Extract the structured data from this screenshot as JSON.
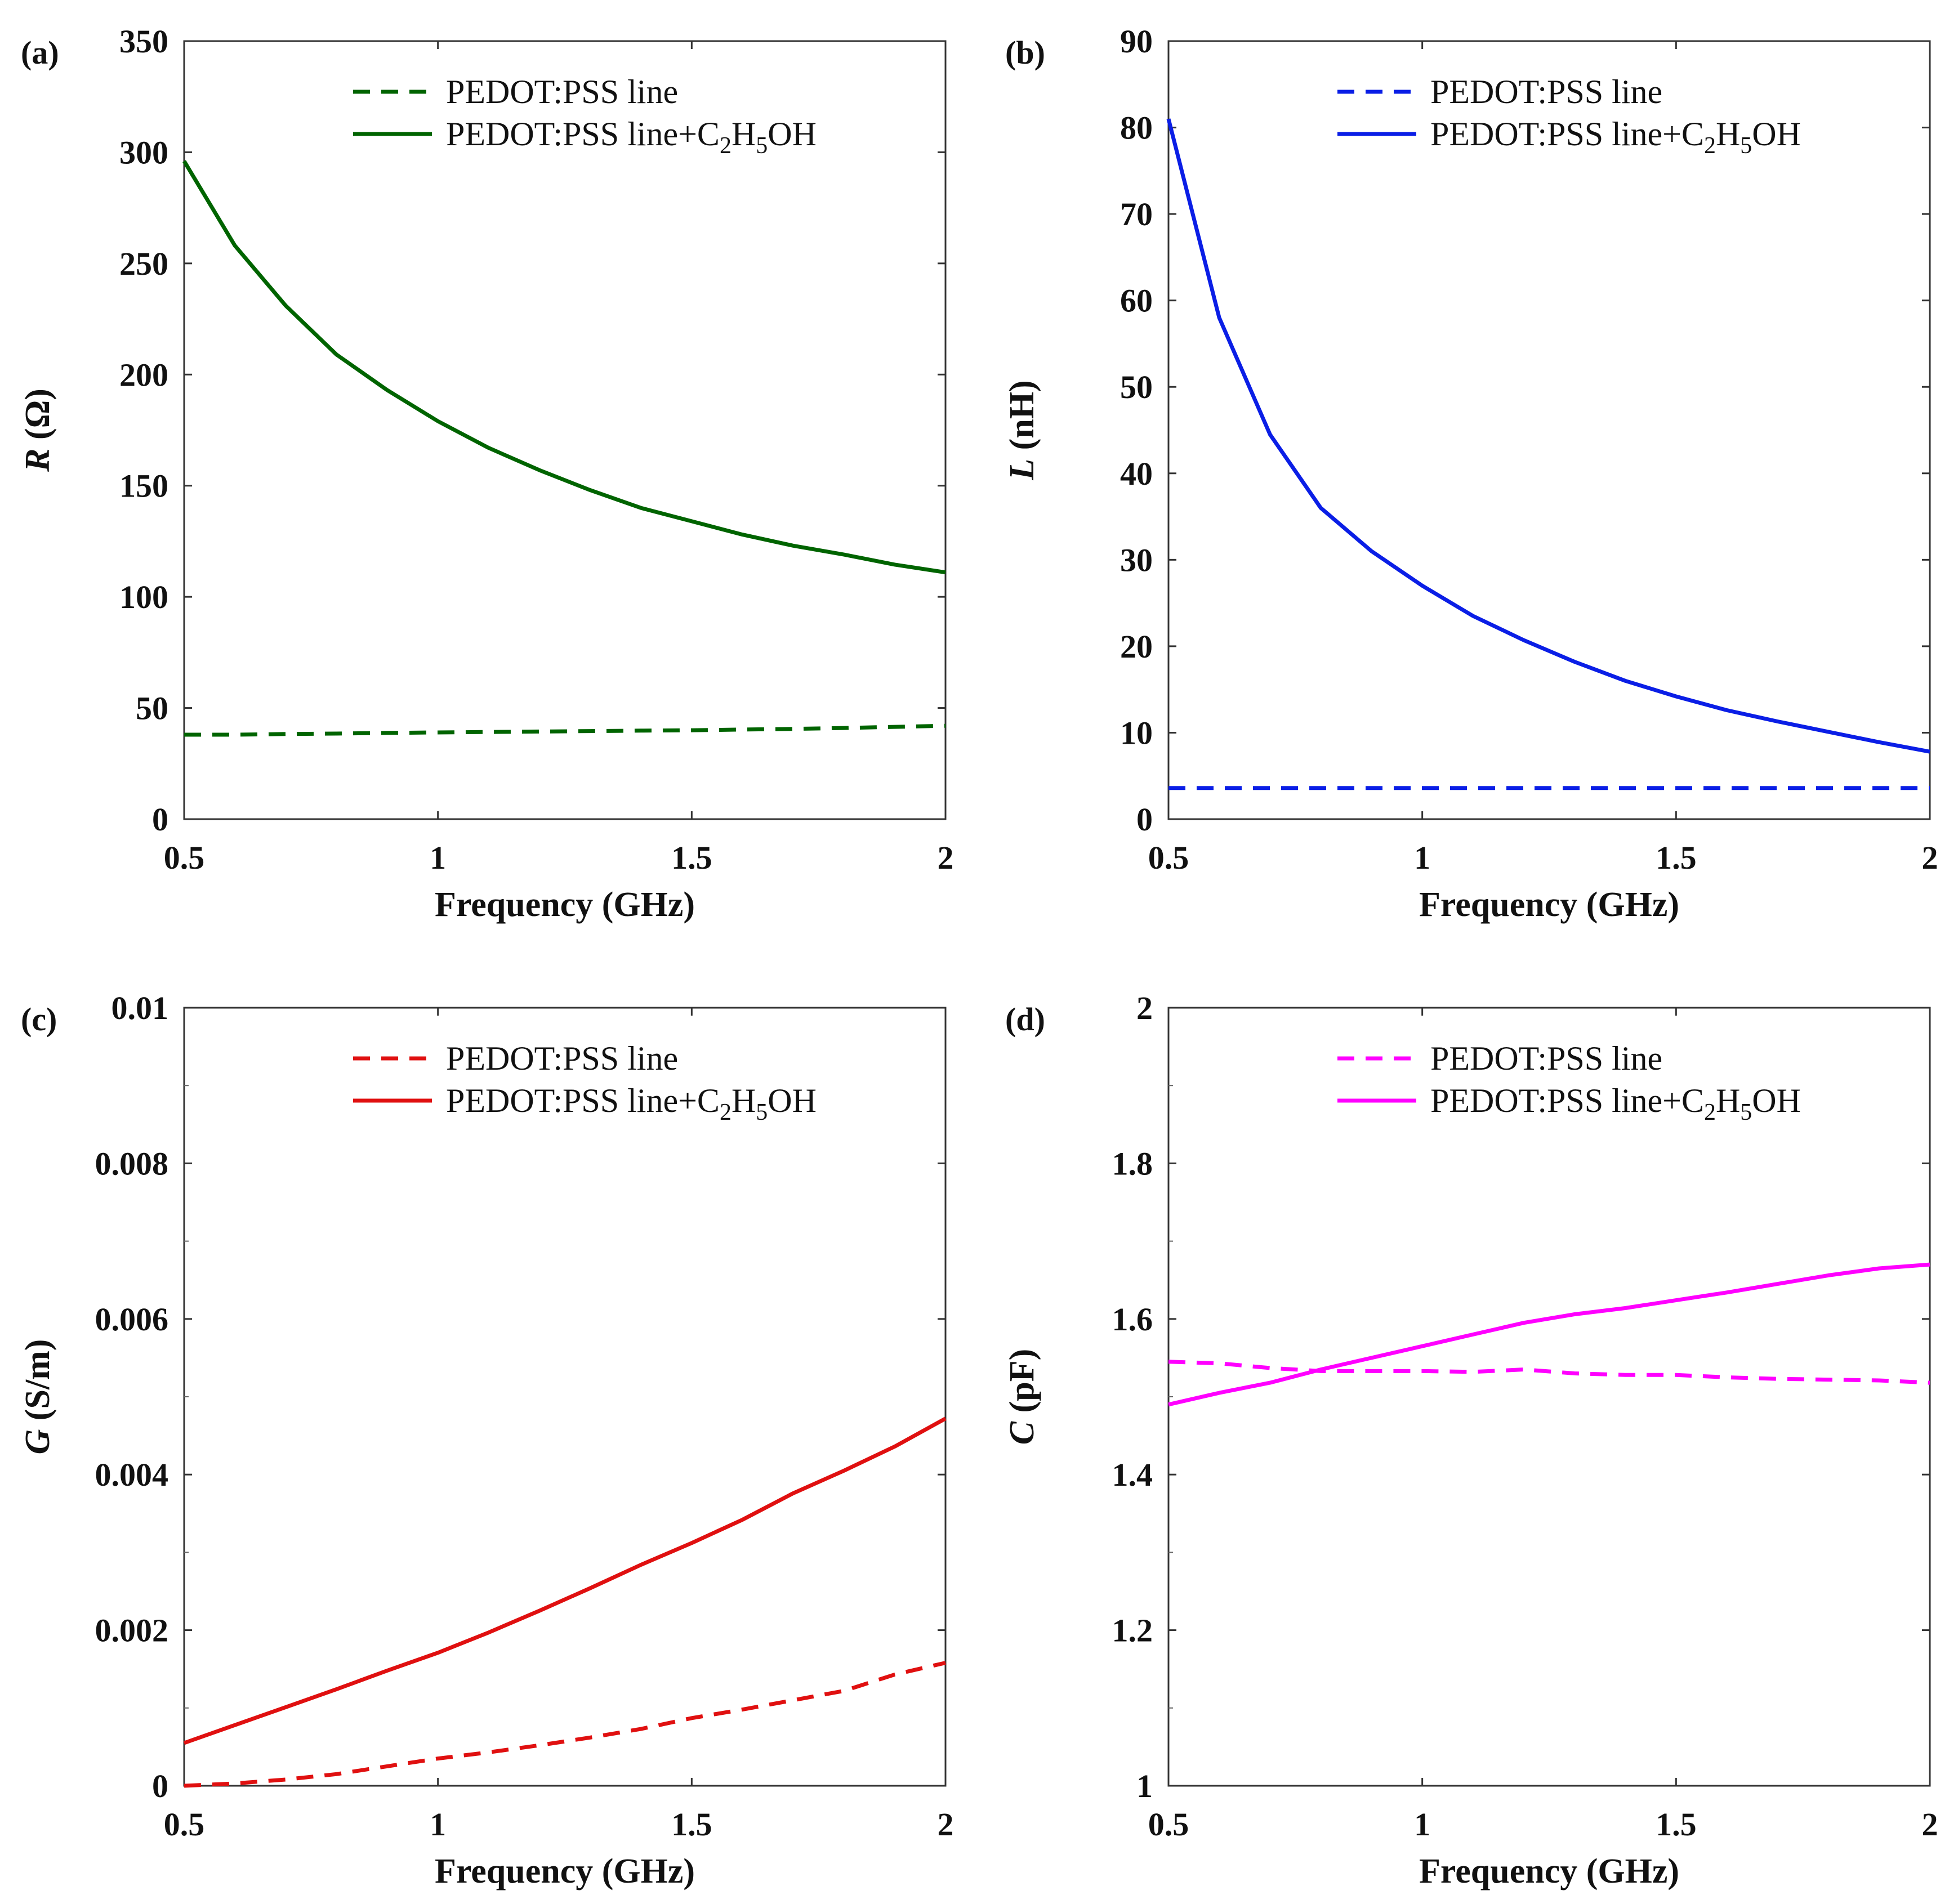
{
  "chart_data": [
    {
      "type": "line",
      "panel": "(a)",
      "xlabel": "Frequency (GHz)",
      "ylabel_var": "R",
      "ylabel_unit": " (Ω)",
      "xlim": [
        0.5,
        2
      ],
      "ylim": [
        0,
        350
      ],
      "xticks": [
        0.5,
        1,
        1.5,
        2
      ],
      "xtick_labels": [
        "0.5",
        "1",
        "1.5",
        "2"
      ],
      "yticks": [
        0,
        50,
        100,
        150,
        200,
        250,
        300,
        350
      ],
      "ytick_labels": [
        "0",
        "50",
        "100",
        "150",
        "200",
        "250",
        "300",
        "350"
      ],
      "minor_yticks": [],
      "color": "#006400",
      "legend": [
        "PEDOT:PSS line",
        "PEDOT:PSS line+C"
      ],
      "legend_sub": [
        "2",
        "H",
        "5",
        "OH"
      ],
      "legend_position": "top-right",
      "x": [
        0.5,
        0.6,
        0.7,
        0.8,
        0.9,
        1.0,
        1.1,
        1.2,
        1.3,
        1.4,
        1.5,
        1.6,
        1.7,
        1.8,
        1.9,
        2.0
      ],
      "series": [
        {
          "name": "PEDOT:PSS line",
          "style": "dashed",
          "values": [
            38,
            38,
            38.3,
            38.5,
            38.8,
            39,
            39.2,
            39.4,
            39.6,
            39.8,
            40,
            40.3,
            40.6,
            41,
            41.5,
            42
          ]
        },
        {
          "name": "PEDOT:PSS line+C2H5OH",
          "style": "solid",
          "values": [
            296,
            258,
            231,
            209,
            193,
            179,
            167,
            157,
            148,
            140,
            134,
            128,
            123,
            119,
            114.5,
            111
          ]
        }
      ]
    },
    {
      "type": "line",
      "panel": "(b)",
      "xlabel": "Frequency (GHz)",
      "ylabel_var": "L",
      "ylabel_unit": " (nH)",
      "xlim": [
        0.5,
        2
      ],
      "ylim": [
        0,
        90
      ],
      "xticks": [
        0.5,
        1,
        1.5,
        2
      ],
      "xtick_labels": [
        "0.5",
        "1",
        "1.5",
        "2"
      ],
      "yticks": [
        0,
        10,
        20,
        30,
        40,
        50,
        60,
        70,
        80,
        90
      ],
      "ytick_labels": [
        "0",
        "10",
        "20",
        "30",
        "40",
        "50",
        "60",
        "70",
        "80",
        "90"
      ],
      "minor_yticks": [],
      "color": "#0a1ee6",
      "legend": [
        "PEDOT:PSS line",
        "PEDOT:PSS line+C"
      ],
      "legend_sub": [
        "2",
        "H",
        "5",
        "OH"
      ],
      "legend_position": "top-right",
      "x": [
        0.5,
        0.6,
        0.7,
        0.8,
        0.9,
        1.0,
        1.1,
        1.2,
        1.3,
        1.4,
        1.5,
        1.6,
        1.7,
        1.8,
        1.9,
        2.0
      ],
      "series": [
        {
          "name": "PEDOT:PSS line",
          "style": "dashed",
          "values": [
            3.6,
            3.6,
            3.6,
            3.6,
            3.6,
            3.6,
            3.6,
            3.6,
            3.6,
            3.6,
            3.6,
            3.6,
            3.6,
            3.6,
            3.6,
            3.6
          ]
        },
        {
          "name": "PEDOT:PSS line+C2H5OH",
          "style": "solid",
          "values": [
            81,
            58,
            44.5,
            36,
            31,
            27,
            23.5,
            20.7,
            18.2,
            16,
            14.2,
            12.6,
            11.3,
            10.1,
            8.9,
            7.8
          ]
        }
      ]
    },
    {
      "type": "line",
      "panel": "(c)",
      "xlabel": "Frequency (GHz)",
      "ylabel_var": "G",
      "ylabel_unit": " (S/m)",
      "xlim": [
        0.5,
        2
      ],
      "ylim": [
        0,
        0.01
      ],
      "xticks": [
        0.5,
        1,
        1.5,
        2
      ],
      "xtick_labels": [
        "0.5",
        "1",
        "1.5",
        "2"
      ],
      "yticks": [
        0,
        0.002,
        0.004,
        0.006,
        0.008,
        0.01
      ],
      "ytick_labels": [
        "0",
        "0.002",
        "0.004",
        "0.006",
        "0.008",
        "0.01"
      ],
      "minor_yticks": [
        0.001,
        0.003,
        0.005,
        0.007,
        0.009
      ],
      "color": "#e01010",
      "legend": [
        "PEDOT:PSS line",
        "PEDOT:PSS line+C"
      ],
      "legend_sub": [
        "2",
        "H",
        "5",
        "OH"
      ],
      "legend_position": "top-right",
      "x": [
        0.5,
        0.6,
        0.7,
        0.8,
        0.9,
        1.0,
        1.1,
        1.2,
        1.3,
        1.4,
        1.5,
        1.6,
        1.7,
        1.8,
        1.9,
        2.0
      ],
      "series": [
        {
          "name": "PEDOT:PSS line",
          "style": "dashed",
          "values": [
            0.0,
            3e-05,
            8e-05,
            0.00015,
            0.00025,
            0.00035,
            0.00043,
            0.00052,
            0.00062,
            0.00073,
            0.00087,
            0.00098,
            0.0011,
            0.00122,
            0.00143,
            0.00158
          ]
        },
        {
          "name": "PEDOT:PSS line+C2H5OH",
          "style": "solid",
          "values": [
            0.00055,
            0.00078,
            0.00101,
            0.00124,
            0.00148,
            0.00171,
            0.00197,
            0.00225,
            0.00254,
            0.00284,
            0.00312,
            0.00342,
            0.00376,
            0.00405,
            0.00436,
            0.00472
          ]
        }
      ]
    },
    {
      "type": "line",
      "panel": "(d)",
      "xlabel": "Frequency (GHz)",
      "ylabel_var": "C",
      "ylabel_unit": " (pF)",
      "xlim": [
        0.5,
        2
      ],
      "ylim": [
        1,
        2
      ],
      "xticks": [
        0.5,
        1,
        1.5,
        2
      ],
      "xtick_labels": [
        "0.5",
        "1",
        "1.5",
        "2"
      ],
      "yticks": [
        1,
        1.2,
        1.4,
        1.6,
        1.8,
        2
      ],
      "ytick_labels": [
        "1",
        "1.2",
        "1.4",
        "1.6",
        "1.8",
        "2"
      ],
      "minor_yticks": [
        1.1,
        1.3,
        1.5,
        1.7,
        1.9
      ],
      "color": "#ff00ff",
      "legend": [
        "PEDOT:PSS line",
        "PEDOT:PSS line+C"
      ],
      "legend_sub": [
        "2",
        "H",
        "5",
        "OH"
      ],
      "legend_position": "top-right",
      "x": [
        0.5,
        0.6,
        0.7,
        0.8,
        0.9,
        1.0,
        1.1,
        1.2,
        1.3,
        1.4,
        1.5,
        1.6,
        1.7,
        1.8,
        1.9,
        2.0
      ],
      "series": [
        {
          "name": "PEDOT:PSS line",
          "style": "dashed",
          "values": [
            1.545,
            1.543,
            1.537,
            1.533,
            1.533,
            1.533,
            1.532,
            1.535,
            1.53,
            1.528,
            1.528,
            1.525,
            1.523,
            1.522,
            1.521,
            1.518
          ]
        },
        {
          "name": "PEDOT:PSS line+C2H5OH",
          "style": "solid",
          "values": [
            1.49,
            1.505,
            1.518,
            1.535,
            1.55,
            1.565,
            1.58,
            1.595,
            1.606,
            1.614,
            1.624,
            1.634,
            1.645,
            1.656,
            1.665,
            1.67
          ]
        }
      ]
    }
  ]
}
